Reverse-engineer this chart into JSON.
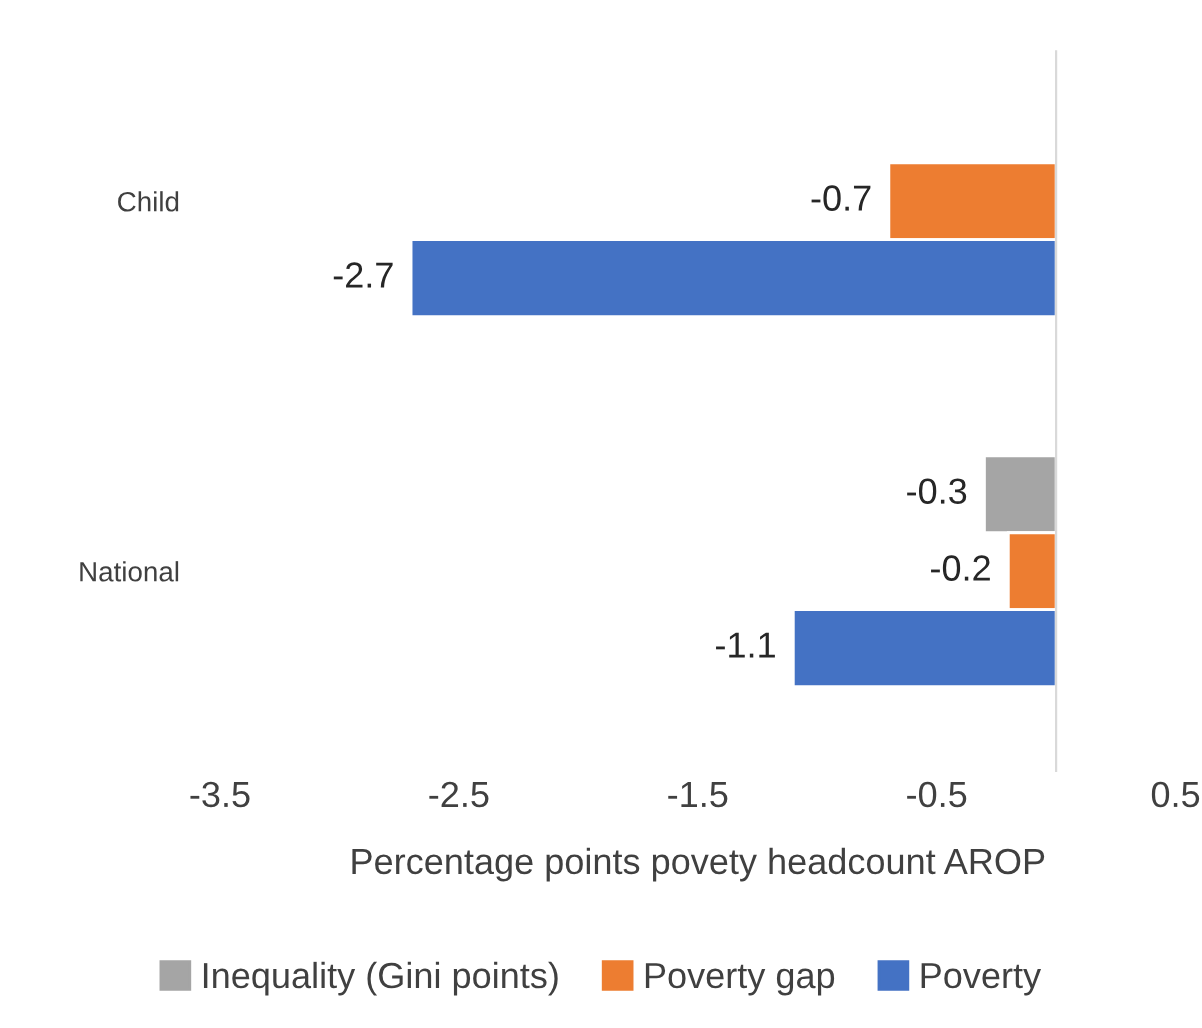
{
  "chart_data": {
    "type": "bar",
    "orientation": "horizontal",
    "categories": [
      "Child",
      "National"
    ],
    "series": [
      {
        "name": "Inequality (Gini points)",
        "color": "#a5a5a5",
        "values": [
          null,
          -0.3
        ]
      },
      {
        "name": "Poverty gap",
        "color": "#ed7d31",
        "values": [
          -0.7,
          -0.2
        ]
      },
      {
        "name": "Poverty",
        "color": "#4472c4",
        "values": [
          -2.7,
          -1.1
        ]
      }
    ],
    "xlim": [
      -3.5,
      0.5
    ],
    "xticks": [
      -3.5,
      -2.5,
      -1.5,
      -0.5,
      0.5
    ],
    "xlabel": "Percentage points povety headcount AROP",
    "data_labels": true,
    "grid": false,
    "legend": "bottom"
  }
}
